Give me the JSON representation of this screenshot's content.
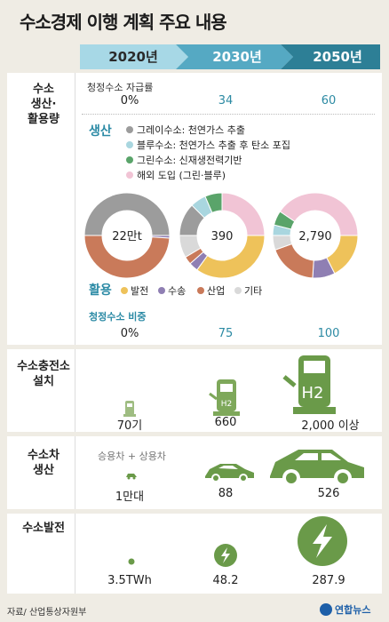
{
  "title": "수소경제 이행 계획 주요 내용",
  "years": [
    "2020년",
    "2030년",
    "2050년"
  ],
  "colors": {
    "gray": "#9c9c9c",
    "lightblue": "#a9d6df",
    "green": "#5aa46a",
    "pink": "#f1c4d5",
    "yellow": "#eec25a",
    "purple": "#8f7fb3",
    "rust": "#c97a5a",
    "lightgray": "#d9d9d9",
    "accent": "#2b8aa5"
  },
  "section1": {
    "label": "수소 생산· 활용량",
    "self_sufficiency_label": "청정수소 자급률",
    "self_sufficiency": [
      "0%",
      "34",
      "60"
    ],
    "production_header": "생산",
    "production_legend": [
      "그레이수소: 천연가스 추출",
      "블루수소: 천연가스 추출 후 탄소 포집",
      "그린수소: 신재생전력기반",
      "해외 도입 (그린·블루)"
    ],
    "usage_header": "활용",
    "usage_legend": [
      "발전",
      "수송",
      "산업",
      "기타"
    ],
    "totals": [
      "22만t",
      "390",
      "2,790"
    ],
    "clean_share_label": "청정수소 비중",
    "clean_share": [
      "0%",
      "75",
      "100"
    ]
  },
  "section2": {
    "label": "수소충전소 설치",
    "values": [
      "70기",
      "660",
      "2,000 이상"
    ],
    "h2_label": "H2"
  },
  "section3": {
    "label": "수소차 생산",
    "note": "승용차 + 상용차",
    "values": [
      "1만대",
      "88",
      "526"
    ]
  },
  "section4": {
    "label": "수소발전",
    "values": [
      "3.5TWh",
      "48.2",
      "287.9"
    ]
  },
  "source": "자료/ 산업통상자원부",
  "brand": "연합뉴스",
  "chart_data": [
    {
      "type": "pie",
      "title": "2020년",
      "center_label": "22만t",
      "series": [
        {
          "name": "생산",
          "values": [
            {
              "label": "그레이수소",
              "value": 100
            }
          ]
        },
        {
          "name": "활용",
          "values": [
            {
              "label": "발전",
              "value": 0
            },
            {
              "label": "수송",
              "value": 2
            },
            {
              "label": "산업",
              "value": 98
            },
            {
              "label": "기타",
              "value": 0
            }
          ]
        }
      ]
    },
    {
      "type": "pie",
      "title": "2030년",
      "center_label": "390",
      "series": [
        {
          "name": "생산",
          "values": [
            {
              "label": "그레이수소",
              "value": 25
            },
            {
              "label": "블루수소",
              "value": 12
            },
            {
              "label": "그린수소",
              "value": 13
            },
            {
              "label": "해외 도입",
              "value": 50
            }
          ]
        },
        {
          "name": "활용",
          "values": [
            {
              "label": "발전",
              "value": 70
            },
            {
              "label": "수송",
              "value": 7
            },
            {
              "label": "산업",
              "value": 6
            },
            {
              "label": "기타",
              "value": 17
            }
          ]
        }
      ]
    },
    {
      "type": "pie",
      "title": "2050년",
      "center_label": "2,790",
      "series": [
        {
          "name": "생산",
          "values": [
            {
              "label": "그레이수소",
              "value": 0
            },
            {
              "label": "블루수소",
              "value": 8
            },
            {
              "label": "그린수소",
              "value": 11
            },
            {
              "label": "해외 도입",
              "value": 81
            }
          ]
        },
        {
          "name": "활용",
          "values": [
            {
              "label": "발전",
              "value": 35
            },
            {
              "label": "수송",
              "value": 17
            },
            {
              "label": "산업",
              "value": 37
            },
            {
              "label": "기타",
              "value": 11
            }
          ]
        }
      ]
    }
  ]
}
